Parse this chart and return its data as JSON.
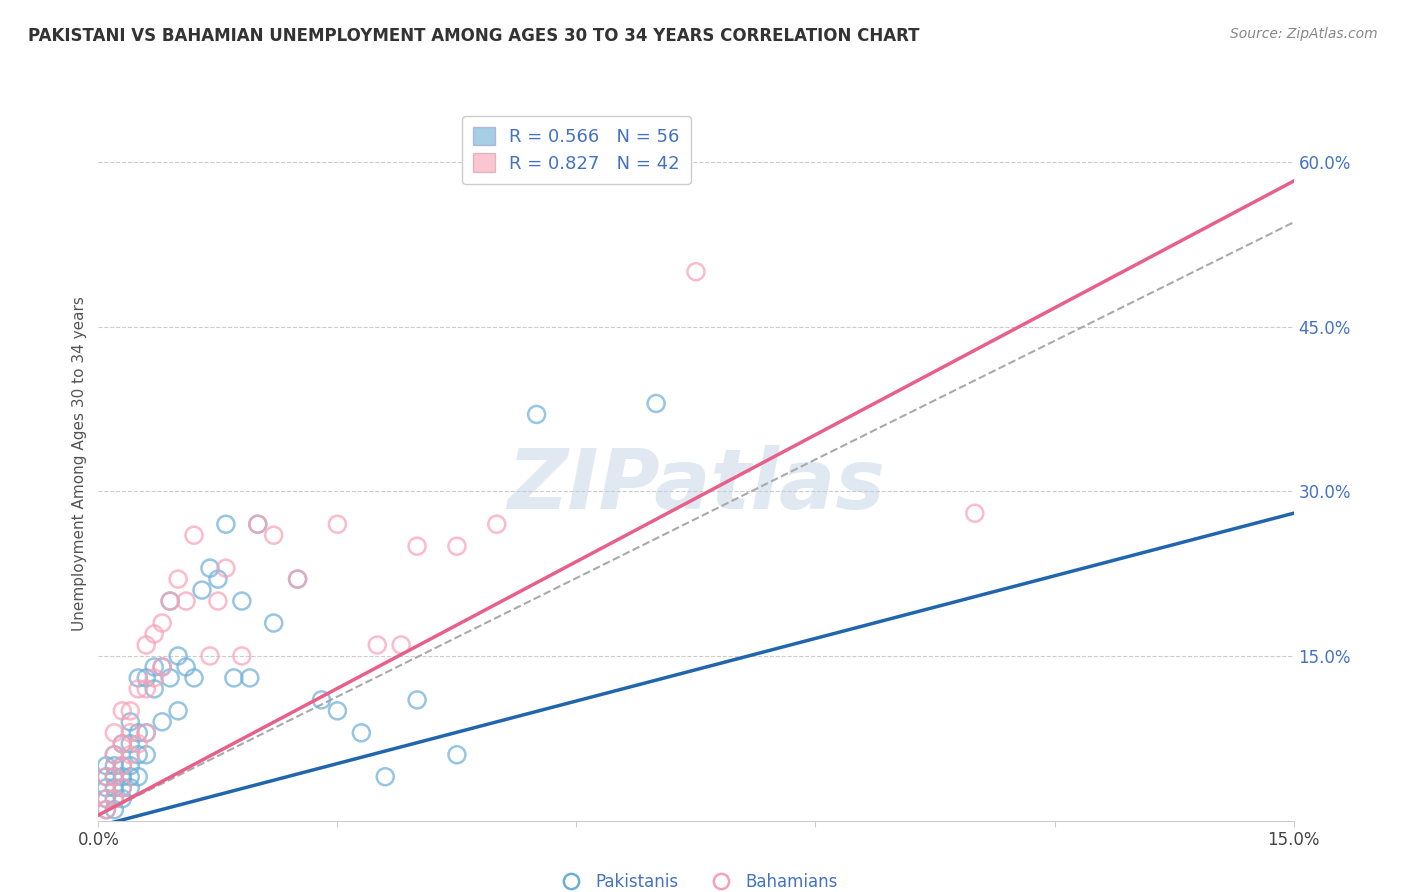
{
  "title": "PAKISTANI VS BAHAMIAN UNEMPLOYMENT AMONG AGES 30 TO 34 YEARS CORRELATION CHART",
  "source": "Source: ZipAtlas.com",
  "ylabel": "Unemployment Among Ages 30 to 34 years",
  "xlim": [
    0.0,
    0.15
  ],
  "ylim": [
    0.0,
    0.65
  ],
  "yticks_right": [
    0.15,
    0.3,
    0.45,
    0.6
  ],
  "ytick_labels_right": [
    "15.0%",
    "30.0%",
    "45.0%",
    "60.0%"
  ],
  "grid_color": "#cccccc",
  "background_color": "#ffffff",
  "watermark": "ZIPatlas",
  "legend_r1": "R = 0.566",
  "legend_n1": "N = 56",
  "legend_r2": "R = 0.827",
  "legend_n2": "N = 42",
  "blue_color": "#6baed6",
  "pink_color": "#fa9fb5",
  "blue_line_color": "#2166ac",
  "pink_line_color": "#e8608a",
  "gray_dash_color": "#aaaaaa",
  "pak_x": [
    0.001,
    0.001,
    0.001,
    0.001,
    0.001,
    0.002,
    0.002,
    0.002,
    0.002,
    0.002,
    0.002,
    0.003,
    0.003,
    0.003,
    0.003,
    0.003,
    0.004,
    0.004,
    0.004,
    0.004,
    0.004,
    0.005,
    0.005,
    0.005,
    0.005,
    0.006,
    0.006,
    0.006,
    0.007,
    0.007,
    0.008,
    0.008,
    0.009,
    0.009,
    0.01,
    0.01,
    0.011,
    0.012,
    0.013,
    0.014,
    0.015,
    0.016,
    0.017,
    0.018,
    0.019,
    0.02,
    0.022,
    0.025,
    0.028,
    0.03,
    0.033,
    0.036,
    0.04,
    0.045,
    0.055,
    0.07
  ],
  "pak_y": [
    0.01,
    0.02,
    0.03,
    0.04,
    0.05,
    0.01,
    0.02,
    0.03,
    0.04,
    0.05,
    0.06,
    0.02,
    0.03,
    0.04,
    0.05,
    0.07,
    0.03,
    0.04,
    0.05,
    0.07,
    0.09,
    0.04,
    0.06,
    0.08,
    0.13,
    0.06,
    0.08,
    0.13,
    0.12,
    0.14,
    0.09,
    0.14,
    0.13,
    0.2,
    0.1,
    0.15,
    0.14,
    0.13,
    0.21,
    0.23,
    0.22,
    0.27,
    0.13,
    0.2,
    0.13,
    0.27,
    0.18,
    0.22,
    0.11,
    0.1,
    0.08,
    0.04,
    0.11,
    0.06,
    0.37,
    0.38
  ],
  "bah_x": [
    0.001,
    0.001,
    0.001,
    0.002,
    0.002,
    0.002,
    0.002,
    0.003,
    0.003,
    0.003,
    0.003,
    0.004,
    0.004,
    0.004,
    0.005,
    0.005,
    0.006,
    0.006,
    0.006,
    0.007,
    0.007,
    0.008,
    0.008,
    0.009,
    0.01,
    0.011,
    0.012,
    0.014,
    0.015,
    0.016,
    0.018,
    0.02,
    0.022,
    0.025,
    0.03,
    0.035,
    0.038,
    0.04,
    0.045,
    0.05,
    0.075,
    0.11
  ],
  "bah_y": [
    0.01,
    0.02,
    0.04,
    0.02,
    0.04,
    0.06,
    0.08,
    0.03,
    0.05,
    0.07,
    0.1,
    0.06,
    0.08,
    0.1,
    0.07,
    0.12,
    0.08,
    0.12,
    0.16,
    0.13,
    0.17,
    0.14,
    0.18,
    0.2,
    0.22,
    0.2,
    0.26,
    0.15,
    0.2,
    0.23,
    0.15,
    0.27,
    0.26,
    0.22,
    0.27,
    0.16,
    0.16,
    0.25,
    0.25,
    0.27,
    0.5,
    0.28
  ]
}
